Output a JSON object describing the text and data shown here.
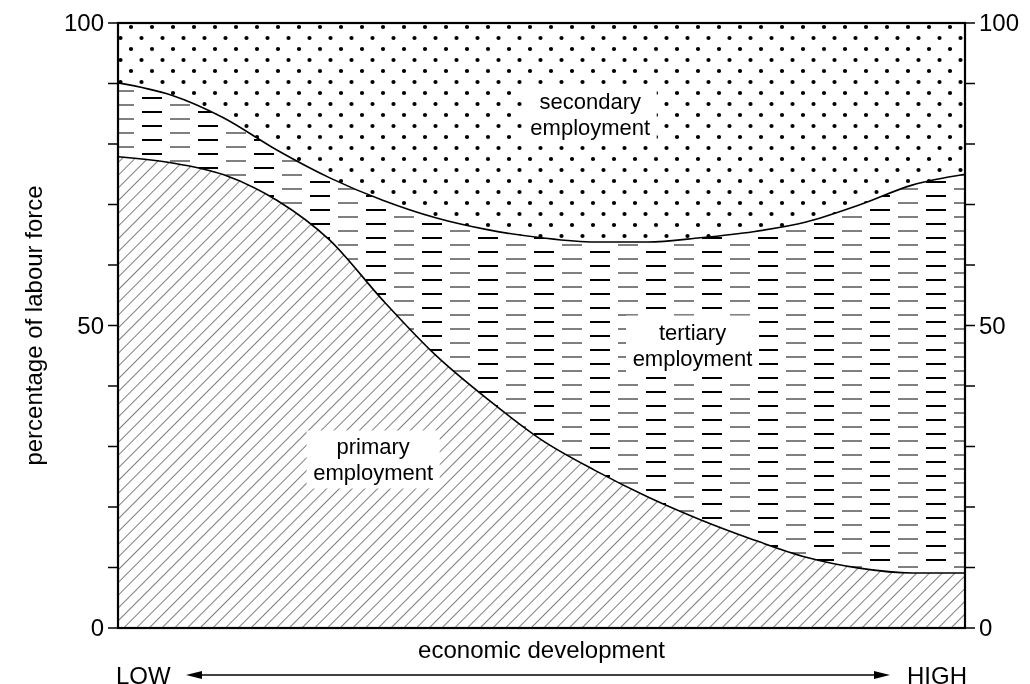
{
  "chart_data": {
    "type": "area",
    "stacked": true,
    "xlabel": "economic development",
    "ylabel": "percentage of labour force",
    "categories": [
      null,
      null,
      null,
      null,
      null,
      null,
      null,
      null,
      null,
      null,
      null,
      null,
      null,
      null,
      null,
      null,
      null
    ],
    "series": [
      {
        "name": "primary employment",
        "color": "#000000",
        "values": [
          77.9,
          76.9,
          74.9,
          70.7,
          64.1,
          54.2,
          45.1,
          37.7,
          31.1,
          26.1,
          21.7,
          17.9,
          14.6,
          11.7,
          9.9,
          9.1,
          9.1
        ]
      },
      {
        "name": "tertiary employment",
        "color": "#000000",
        "values": [
          12.2,
          11.2,
          9.4,
          8.3,
          10.3,
          16.5,
          22.7,
          28.1,
          33.4,
          37.7,
          42.1,
          46.6,
          50.9,
          55.4,
          60.0,
          64.1,
          65.9
        ]
      },
      {
        "name": "secondary employment",
        "color": "#000000",
        "values": [
          9.9,
          11.9,
          15.7,
          21.0,
          25.6,
          29.3,
          32.2,
          34.2,
          35.5,
          36.2,
          36.2,
          35.5,
          34.5,
          32.9,
          30.1,
          26.8,
          25.0
        ]
      }
    ],
    "ylim": [
      0,
      100
    ],
    "yticks": [
      0,
      {
        "value": 10,
        "label": null
      },
      {
        "value": 20,
        "label": null
      },
      {
        "value": 30,
        "label": null
      },
      {
        "value": 40,
        "label": null
      },
      50,
      {
        "value": 60,
        "label": null
      },
      {
        "value": 70,
        "label": null
      },
      {
        "value": 80,
        "label": null
      },
      {
        "value": 90,
        "label": null
      },
      100
    ],
    "y2lim": [
      0,
      100
    ],
    "y2ticks": [
      0,
      {
        "value": 10,
        "label": null
      },
      {
        "value": 20,
        "label": null
      },
      {
        "value": 30,
        "label": null
      },
      {
        "value": 40,
        "label": null
      },
      50,
      {
        "value": 60,
        "label": null
      },
      {
        "value": 70,
        "label": null
      },
      {
        "value": 80,
        "label": null
      },
      {
        "value": 90,
        "label": null
      },
      100
    ],
    "annotations": [
      "LOW",
      "HIGH"
    ],
    "grid": false,
    "legend": false,
    "marker": "none",
    "line_style": "solid"
  }
}
